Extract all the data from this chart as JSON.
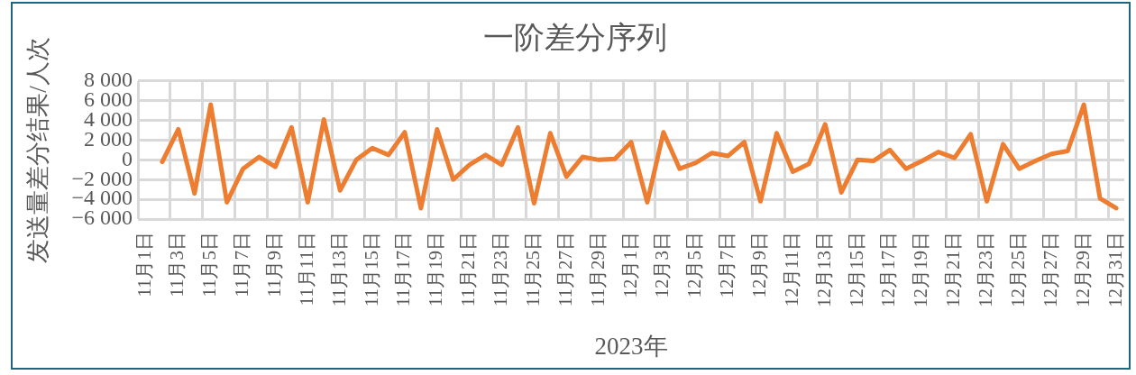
{
  "chart_data": {
    "type": "line",
    "title": "一阶差分序列",
    "xlabel": "2023年",
    "ylabel": "发送量差分结果/人次",
    "categories": [
      "11月1日",
      null,
      "11月3日",
      null,
      "11月5日",
      null,
      "11月7日",
      null,
      "11月9日",
      null,
      "11月11日",
      null,
      "11月13日",
      null,
      "11月15日",
      null,
      "11月17日",
      null,
      "11月19日",
      null,
      "11月21日",
      null,
      "11月23日",
      null,
      "11月25日",
      null,
      "11月27日",
      null,
      "11月29日",
      null,
      "12月1日",
      null,
      "12月3日",
      null,
      "12月5日",
      null,
      "12月7日",
      null,
      "12月9日",
      null,
      "12月11日",
      null,
      "12月13日",
      null,
      "12月15日",
      null,
      "12月17日",
      null,
      "12月19日",
      null,
      "12月21日",
      null,
      "12月23日",
      null,
      "12月25日",
      null,
      "12月27日",
      null,
      "12月29日",
      null,
      "12月31日"
    ],
    "values": [
      null,
      -200,
      3100,
      -3400,
      5600,
      -4300,
      -900,
      300,
      -700,
      3300,
      -4300,
      4100,
      -3100,
      0,
      1200,
      500,
      2800,
      -4900,
      3100,
      -2000,
      -500,
      500,
      -500,
      3300,
      -4400,
      2700,
      -1700,
      300,
      0,
      100,
      1800,
      -4300,
      2800,
      -900,
      -300,
      700,
      400,
      1800,
      -4200,
      2700,
      -1200,
      -400,
      3600,
      -3300,
      0,
      -100,
      1000,
      -900,
      -100,
      800,
      200,
      2600,
      -4200,
      1600,
      -900,
      -100,
      600,
      900,
      5600,
      -3900,
      -4900
    ],
    "color": "#ed7d31",
    "ylim": [
      -6000,
      8000
    ],
    "yticks": [
      {
        "value": -6000,
        "label": "−6 000"
      },
      {
        "value": -4000,
        "label": "−4 000"
      },
      {
        "value": -2000,
        "label": "−2 000"
      },
      0,
      {
        "value": 2000,
        "label": "2 000"
      },
      {
        "value": 4000,
        "label": "4 000"
      },
      {
        "value": 6000,
        "label": "6 000"
      },
      {
        "value": 8000,
        "label": "8 000"
      }
    ],
    "grid": true,
    "marker": "none",
    "line_style": "solid"
  }
}
